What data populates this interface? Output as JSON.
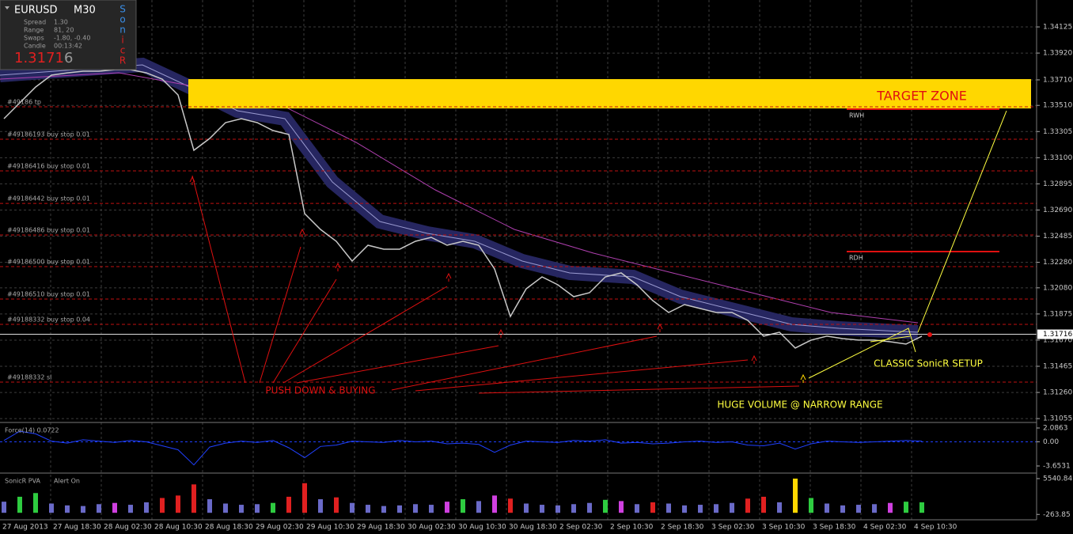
{
  "info_panel": {
    "symbol": "EURUSD",
    "timeframe": "M30",
    "rows": [
      [
        "Spread",
        "1.30"
      ],
      [
        "Range",
        "81, 20"
      ],
      [
        "Swaps",
        "-1.80, -0.40"
      ],
      [
        "Candle",
        "00:13:42"
      ]
    ],
    "price": "1.3171",
    "price_last_digit": "6",
    "brand_letters": [
      "S",
      "o",
      "n",
      "i",
      "c",
      "R"
    ]
  },
  "chart_data": [
    {
      "type": "line",
      "color": "#c8c8c8",
      "grid": true,
      "values": [
        1.33406,
        1.3353,
        1.33654,
        1.33747,
        1.33765,
        1.33778,
        1.33778,
        1.3379,
        1.3379,
        1.33765,
        1.33716,
        1.33592,
        1.33158,
        1.33251,
        1.33375,
        1.33406,
        1.33375,
        1.33313,
        1.33282,
        1.32662,
        1.32538,
        1.32445,
        1.3229,
        1.32414,
        1.32383,
        1.32383,
        1.32445,
        1.32476,
        1.32414,
        1.32445,
        1.32414,
        1.32228,
        1.31856,
        1.32073,
        1.32166,
        1.32104,
        1.32011,
        1.32042,
        1.32166,
        1.32197,
        1.32104,
        1.3198,
        1.31887,
        1.31949,
        1.31918,
        1.31887,
        1.31887,
        1.31825,
        1.31701,
        1.31732,
        1.31608,
        1.3167,
        1.31701,
        1.31682,
        1.3167,
        1.3167,
        1.31657,
        1.31639,
        1.31701
      ],
      "ylim": [
        1.31031,
        1.34336
      ],
      "yticks": [
        1.34125,
        {
          "value": 1.3392,
          "label": "1.33920"
        },
        {
          "value": 1.3371,
          "label": "1.33710"
        },
        {
          "value": 1.3351,
          "label": "1.33510"
        },
        1.33305,
        {
          "value": 1.331,
          "label": "1.33100"
        },
        1.32895,
        {
          "value": 1.3269,
          "label": "1.32690"
        },
        1.32485,
        {
          "value": 1.3228,
          "label": "1.32280"
        },
        {
          "value": 1.3208,
          "label": "1.32080"
        },
        1.31875,
        {
          "value": 1.3167,
          "label": "1.31670"
        },
        1.31465,
        {
          "value": 1.3126,
          "label": "1.31260"
        },
        1.31055
      ],
      "current_price": 1.31716,
      "order_lines": [
        {
          "label": "#49186 tp",
          "price": 1.33499
        },
        {
          "label": "#49186193 buy stop 0.01",
          "price": 1.33245
        },
        {
          "label": "#49186416 buy stop 0.01",
          "price": 1.32997
        },
        {
          "label": "#49186442 buy stop 0.01",
          "price": 1.32742
        },
        {
          "label": "#49186486 buy stop 0.01",
          "price": 1.32494
        },
        {
          "label": "#49186500 buy stop 0.01",
          "price": 1.32246
        },
        {
          "label": "#49186510 buy stop 0.01",
          "price": 1.31992
        },
        {
          "label": "#49188332 buy stop 0.04",
          "price": 1.31794
        },
        {
          "label": "#49188332 sl",
          "price": 1.31341
        }
      ],
      "target_zone": {
        "label": "TARGET ZONE",
        "range": [
          1.33486,
          1.33716
        ]
      },
      "levels": [
        {
          "label": "RWH",
          "price": 1.3348
        },
        {
          "label": "RDH",
          "price": 1.32364
        }
      ],
      "annotations": [
        "PUSH DOWN & BUYING",
        "CLASSIC SonicR SETUP",
        "HUGE VOLUME @ NARROW RANGE"
      ]
    },
    {
      "type": "line",
      "title": "Force(14) 0.0722",
      "color": "#2040ff",
      "values": [
        0.2,
        1.6,
        1.2,
        0.1,
        -0.2,
        0.3,
        0.1,
        -0.1,
        0.2,
        0.0,
        -0.6,
        -1.2,
        -3.5,
        -0.8,
        -0.2,
        0.1,
        -0.1,
        0.2,
        -0.9,
        -2.4,
        -0.7,
        -0.5,
        0.1,
        0.0,
        -0.1,
        0.2,
        0.0,
        0.1,
        -0.3,
        -0.2,
        -0.4,
        -1.6,
        -0.5,
        0.1,
        0.0,
        -0.1,
        0.2,
        0.1,
        0.3,
        -0.2,
        -0.1,
        -0.3,
        -0.2,
        0.0,
        0.1,
        -0.1,
        0.0,
        -0.5,
        -0.6,
        -0.2,
        -1.1,
        -0.3,
        0.1,
        0.0,
        -0.1,
        0.0,
        0.1,
        0.2,
        0.1
      ],
      "ylim": [
        -4.49,
        2.565
      ],
      "yticks": [
        2.0863,
        {
          "value": 0,
          "label": "0.00"
        },
        -3.6531
      ]
    },
    {
      "type": "bar",
      "title": "SonicR PVA",
      "status": "Alert On",
      "values": [
        1800,
        2600,
        3200,
        1500,
        1200,
        1100,
        1400,
        1600,
        1300,
        1700,
        2400,
        2800,
        4600,
        2200,
        1500,
        1300,
        1400,
        1600,
        2600,
        4800,
        2200,
        2500,
        1600,
        1300,
        1100,
        1200,
        1400,
        1300,
        1800,
        2200,
        1900,
        2800,
        2300,
        1500,
        1300,
        1200,
        1400,
        1600,
        2100,
        1900,
        1400,
        1700,
        1500,
        1200,
        1300,
        1400,
        1600,
        2300,
        2600,
        1700,
        5540,
        2400,
        1500,
        1200,
        1300,
        1400,
        1600,
        1800,
        1700
      ],
      "colors": [
        "#6a6ac8",
        "#2ecc40",
        "#2ecc40",
        "#6a6ac8",
        "#6a6ac8",
        "#6a6ac8",
        "#6a6ac8",
        "#d040e0",
        "#6a6ac8",
        "#6a6ac8",
        "#e02020",
        "#e02020",
        "#e02020",
        "#6a6ac8",
        "#6a6ac8",
        "#6a6ac8",
        "#6a6ac8",
        "#2ecc40",
        "#e02020",
        "#e02020",
        "#6a6ac8",
        "#e02020",
        "#6a6ac8",
        "#6a6ac8",
        "#6a6ac8",
        "#6a6ac8",
        "#6a6ac8",
        "#6a6ac8",
        "#d040e0",
        "#2ecc40",
        "#6a6ac8",
        "#d040e0",
        "#e02020",
        "#6a6ac8",
        "#6a6ac8",
        "#6a6ac8",
        "#6a6ac8",
        "#6a6ac8",
        "#2ecc40",
        "#d040e0",
        "#6a6ac8",
        "#e02020",
        "#6a6ac8",
        "#6a6ac8",
        "#6a6ac8",
        "#6a6ac8",
        "#6a6ac8",
        "#e02020",
        "#e02020",
        "#6a6ac8",
        "#ffd700",
        "#2ecc40",
        "#6a6ac8",
        "#6a6ac8",
        "#6a6ac8",
        "#6a6ac8",
        "#d040e0",
        "#2ecc40",
        "#2ecc40"
      ],
      "ylim": [
        -1000,
        6050
      ],
      "yticks": [
        5540.84,
        -263.85
      ]
    }
  ],
  "time_axis": [
    "27 Aug 2013",
    "27 Aug 18:30",
    "28 Aug 02:30",
    "28 Aug 10:30",
    "28 Aug 18:30",
    "29 Aug 02:30",
    "29 Aug 10:30",
    "29 Aug 18:30",
    "30 Aug 02:30",
    "30 Aug 10:30",
    "30 Aug 18:30",
    "2 Sep 02:30",
    "2 Sep 10:30",
    "2 Sep 18:30",
    "3 Sep 02:30",
    "3 Sep 10:30",
    "3 Sep 18:30",
    "4 Sep 02:30",
    "4 Sep 10:30"
  ]
}
